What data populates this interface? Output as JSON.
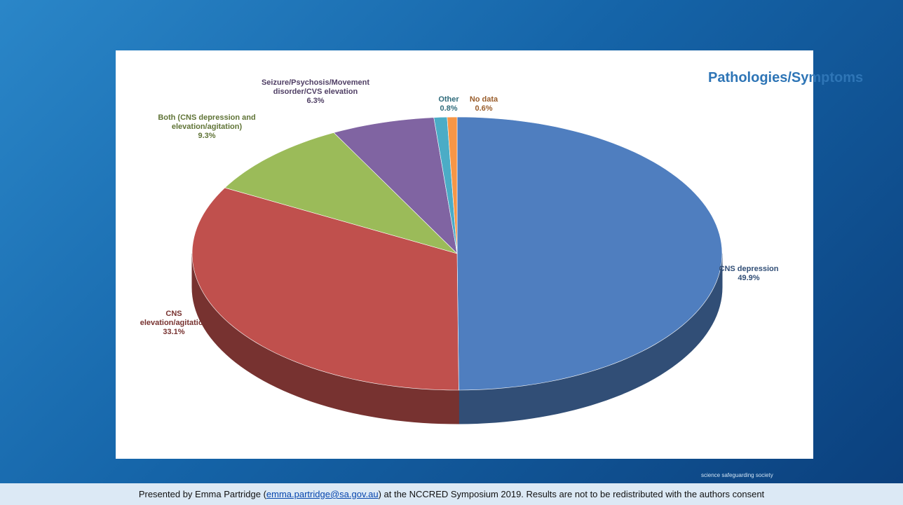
{
  "chart_data": {
    "type": "pie",
    "title": "Pathologies/Symptoms",
    "categories": [
      "CNS depression",
      "CNS elevation/agitation",
      "Both (CNS depression and elevation/agitation)",
      "Seizure/Psychosis/Movement disorder/CVS elevation",
      "Other",
      "No data"
    ],
    "values": [
      49.9,
      33.1,
      9.3,
      6.3,
      0.8,
      0.6
    ],
    "value_labels": [
      "49.9%",
      "33.1%",
      "9.3%",
      "6.3%",
      "0.8%",
      "0.6%"
    ],
    "colors": [
      "#4f7ebf",
      "#c0504d",
      "#9bbb59",
      "#8064a2",
      "#4bacc6",
      "#f79646"
    ]
  },
  "footer": {
    "before": "Presented by Emma Partridge (",
    "link": "emma.partridge@sa.gov.au",
    "after": ") at the NCCRED Symposium 2019. Results are not to be redistributed with the authors consent"
  },
  "logo_text": "science safeguarding society"
}
